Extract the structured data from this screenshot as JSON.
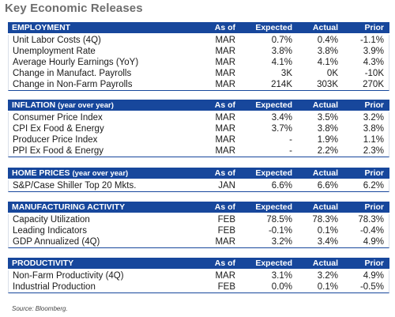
{
  "title": "Key Economic Releases",
  "columns": {
    "asof": "As of",
    "expected": "Expected",
    "actual": "Actual",
    "prior": "Prior"
  },
  "sections": [
    {
      "name": "EMPLOYMENT",
      "sub": "",
      "rows": [
        {
          "label": "Unit Labor Costs (4Q)",
          "asof": "MAR",
          "expected": "0.7%",
          "actual": "0.4%",
          "prior": "-1.1%"
        },
        {
          "label": "Unemployment Rate",
          "asof": "MAR",
          "expected": "3.8%",
          "actual": "3.8%",
          "prior": "3.9%"
        },
        {
          "label": "Average Hourly Earnings (YoY)",
          "asof": "MAR",
          "expected": "4.1%",
          "actual": "4.1%",
          "prior": "4.3%"
        },
        {
          "label": "Change in Manufact. Payrolls",
          "asof": "MAR",
          "expected": "3K",
          "actual": "0K",
          "prior": "-10K"
        },
        {
          "label": "Change in Non-Farm Payrolls",
          "asof": "MAR",
          "expected": "214K",
          "actual": "303K",
          "prior": "270K"
        }
      ]
    },
    {
      "name": "INFLATION",
      "sub": "(year over year)",
      "rows": [
        {
          "label": "Consumer Price Index",
          "asof": "MAR",
          "expected": "3.4%",
          "actual": "3.5%",
          "prior": "3.2%"
        },
        {
          "label": "CPI Ex Food & Energy",
          "asof": "MAR",
          "expected": "3.7%",
          "actual": "3.8%",
          "prior": "3.8%"
        },
        {
          "label": "Producer Price Index",
          "asof": "MAR",
          "expected": "-",
          "actual": "1.9%",
          "prior": "1.1%"
        },
        {
          "label": "PPI Ex Food & Energy",
          "asof": "MAR",
          "expected": "-",
          "actual": "2.2%",
          "prior": "2.3%"
        }
      ]
    },
    {
      "name": "HOME PRICES",
      "sub": "(year over year)",
      "rows": [
        {
          "label": "S&P/Case Shiller Top 20 Mkts.",
          "asof": "JAN",
          "expected": "6.6%",
          "actual": "6.6%",
          "prior": "6.2%"
        }
      ]
    },
    {
      "name": "MANUFACTURING ACTIVITY",
      "sub": "",
      "rows": [
        {
          "label": "Capacity Utilization",
          "asof": "FEB",
          "expected": "78.5%",
          "actual": "78.3%",
          "prior": "78.3%"
        },
        {
          "label": "Leading Indicators",
          "asof": "FEB",
          "expected": "-0.1%",
          "actual": "0.1%",
          "prior": "-0.4%"
        },
        {
          "label": "GDP Annualized (4Q)",
          "asof": "MAR",
          "expected": "3.2%",
          "actual": "3.4%",
          "prior": "4.9%"
        }
      ]
    },
    {
      "name": "PRODUCTIVITY",
      "sub": "",
      "rows": [
        {
          "label": "Non-Farm Productivity (4Q)",
          "asof": "MAR",
          "expected": "3.1%",
          "actual": "3.2%",
          "prior": "4.9%"
        },
        {
          "label": "Industrial Production",
          "asof": "FEB",
          "expected": "0.0%",
          "actual": "0.1%",
          "prior": "-0.5%"
        }
      ]
    }
  ],
  "source": "Source: Bloomberg.",
  "colors": {
    "header_bg": "#17479c",
    "header_text": "#ffffff",
    "title": "#6e6e6e"
  }
}
